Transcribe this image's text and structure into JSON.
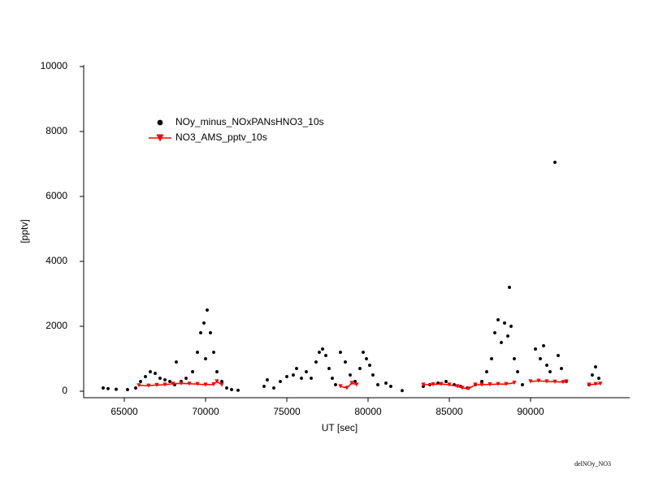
{
  "chart_data": {
    "type": "scatter",
    "xlabel": "UT [sec]",
    "ylabel": "[pptv]",
    "footnote": "delNOy_NO3",
    "xlim": [
      62500,
      96100
    ],
    "ylim": [
      -200,
      10000
    ],
    "xticks": [
      65000,
      70000,
      75000,
      80000,
      85000,
      90000
    ],
    "yticks": [
      0,
      2000,
      4000,
      6000,
      8000,
      10000
    ],
    "legend": "upper left",
    "grid": false,
    "series": [
      {
        "name": "NOy_minus_NOxPANsHNO3_10s",
        "color": "#000000",
        "marker": "circle",
        "line": false,
        "x": [
          63700,
          64000,
          64500,
          65200,
          65700,
          66000,
          66300,
          66600,
          66900,
          67200,
          67500,
          67800,
          68100,
          68200,
          68500,
          68800,
          69200,
          69500,
          69700,
          69900,
          70000,
          70100,
          70300,
          70500,
          70700,
          71000,
          71300,
          71600,
          72000,
          73600,
          73800,
          74200,
          74600,
          75000,
          75400,
          75600,
          75900,
          76200,
          76500,
          76800,
          77000,
          77200,
          77400,
          77600,
          77800,
          78000,
          78300,
          78600,
          78900,
          79200,
          79500,
          79700,
          79900,
          80100,
          80300,
          80600,
          81100,
          81400,
          82100,
          83400,
          83800,
          84300,
          84800,
          85300,
          85700,
          86100,
          86600,
          87000,
          87300,
          87600,
          87800,
          88000,
          88200,
          88400,
          88600,
          88700,
          88800,
          89000,
          89200,
          89500,
          90300,
          90600,
          90800,
          91000,
          91200,
          91500,
          91700,
          91900,
          92200,
          93600,
          93800,
          94000,
          94200
        ],
        "values": [
          100,
          80,
          60,
          50,
          100,
          300,
          450,
          600,
          550,
          400,
          350,
          300,
          200,
          900,
          300,
          400,
          600,
          1200,
          1800,
          2100,
          1000,
          2500,
          1800,
          1200,
          600,
          300,
          100,
          50,
          30,
          150,
          350,
          100,
          300,
          450,
          500,
          700,
          400,
          600,
          400,
          900,
          1200,
          1300,
          1100,
          700,
          400,
          200,
          1200,
          900,
          500,
          300,
          700,
          1200,
          1000,
          800,
          500,
          200,
          250,
          150,
          20,
          150,
          200,
          250,
          300,
          200,
          150,
          100,
          200,
          300,
          600,
          1000,
          1800,
          2200,
          1500,
          2100,
          1700,
          3200,
          2000,
          1000,
          600,
          200,
          1300,
          1000,
          1400,
          800,
          600,
          7050,
          1100,
          700,
          300,
          200,
          500,
          750,
          400
        ]
      },
      {
        "name": "NO3_AMS_pptv_10s",
        "color": "#ff0000",
        "marker": "triangle-down",
        "line": true,
        "x": [
          65900,
          66500,
          67000,
          67500,
          68000,
          68500,
          69000,
          69500,
          70000,
          70500,
          70700,
          71000,
          null,
          78300,
          78700,
          79000,
          79300,
          null,
          83400,
          84000,
          84500,
          85000,
          85500,
          85800,
          86200,
          86600,
          87000,
          87500,
          88000,
          88500,
          89000,
          null,
          90000,
          90500,
          91000,
          91500,
          92000,
          92200,
          null,
          93600,
          94000,
          94300
        ],
        "values": [
          180,
          170,
          190,
          200,
          230,
          240,
          230,
          220,
          200,
          210,
          300,
          200,
          null,
          150,
          100,
          250,
          200,
          null,
          200,
          210,
          220,
          200,
          150,
          100,
          80,
          200,
          200,
          210,
          220,
          220,
          260,
          null,
          300,
          320,
          300,
          290,
          280,
          300,
          null,
          200,
          220,
          230
        ]
      }
    ]
  }
}
